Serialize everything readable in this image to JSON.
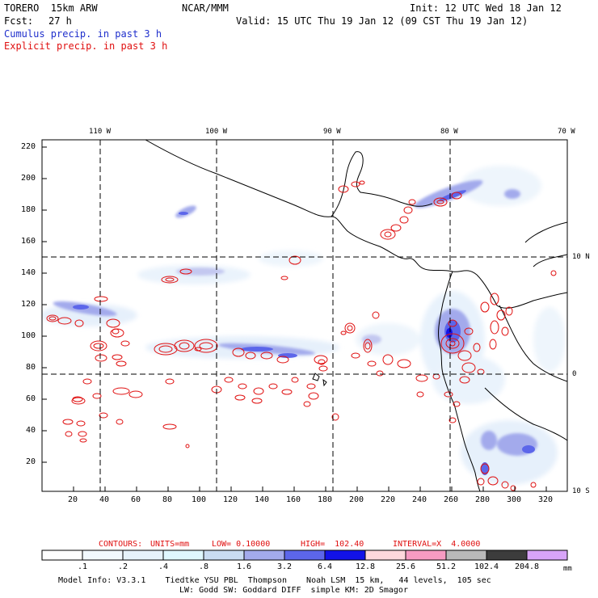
{
  "header": {
    "model": "TORERO  15km ARW",
    "org": "NCAR/MMM",
    "init": "Init: 12 UTC Wed 18 Jan 12",
    "fcst_label": "Fcst:",
    "fcst_value": "27 h",
    "valid": "Valid: 15 UTC Thu 19 Jan 12 (09 CST Thu 19 Jan 12)",
    "field1": "Cumulus precip. in past 3 h",
    "field2": "Explicit precip. in past 3 h"
  },
  "axes": {
    "top_lon": [
      "110 W",
      "100 W",
      "90 W",
      "80 W",
      "70 W"
    ],
    "right_lat": [
      "10 N",
      "0",
      "10 S"
    ],
    "left_y": [
      "220",
      "200",
      "180",
      "160",
      "140",
      "120",
      "100",
      "80",
      "60",
      "40",
      "20"
    ],
    "bottom_x": [
      "20",
      "40",
      "60",
      "80",
      "100",
      "120",
      "140",
      "160",
      "180",
      "200",
      "220",
      "240",
      "260",
      "280",
      "300",
      "320"
    ]
  },
  "contours_info": {
    "label": "CONTOURS:",
    "units": "UNITS=mm",
    "low": "LOW= 0.10000",
    "high": "HIGH=  102.40",
    "interval": "INTERVAL=X  4.0000"
  },
  "colorbar": {
    "labels": [
      ".1",
      ".2",
      ".4",
      ".8",
      "1.6",
      "3.2",
      "6.4",
      "12.8",
      "25.6",
      "51.2",
      "102.4",
      "204.8"
    ],
    "unit": "mm",
    "colors": [
      "#ffffff",
      "#f2f9ff",
      "#e6f2fb",
      "#dff7ff",
      "#c9dcf2",
      "#a3aaec",
      "#5c66ea",
      "#1212e8",
      "#ffd8dc",
      "#f79bc2",
      "#b9b9b9",
      "#3c3c3c",
      "#d8a4f8"
    ]
  },
  "footer": {
    "line1": "Model Info: V3.3.1    Tiedtke YSU PBL  Thompson    Noah LSM  15 km,   44 levels,  105 sec",
    "line2": "LW: Godd SW: Goddard DIFF  simple KM: 2D Smagor"
  }
}
